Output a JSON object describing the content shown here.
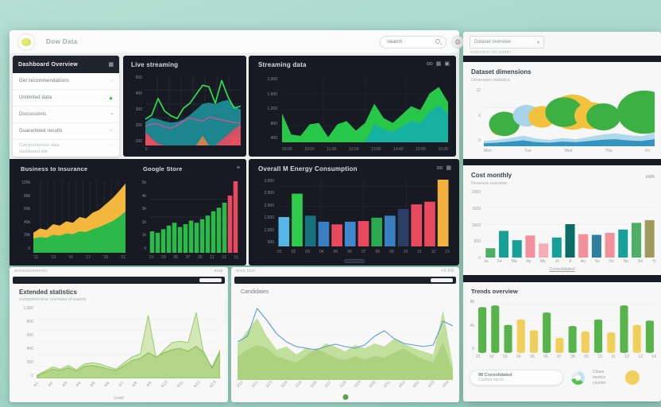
{
  "colors": {
    "background_teal": "#a3d6c7",
    "panel_dark": "#171a22",
    "accent_green": "#2ecc4b",
    "accent_teal": "#18a3a0",
    "accent_yellow": "#f2b73c",
    "accent_red": "#e8495f",
    "accent_blue": "#55b7e6",
    "light_green_area": "#bede96",
    "bar_green": "#56b44a",
    "bar_yellow": "#f2cf5b",
    "pink": "#f2919b",
    "olive": "#a09a5f"
  },
  "topbar": {
    "logo_text": "Dow Data",
    "search_placeholder": "Search",
    "gear_icon": "⚙"
  },
  "sidebar": {
    "header": {
      "label": "Dashboard Overview",
      "icon": "▦"
    },
    "items": [
      {
        "label": "Get recommendations",
        "icon": "▫"
      },
      {
        "label": "Unlimited data",
        "icon": "●"
      },
      {
        "label": "Discussions",
        "icon": "▪"
      },
      {
        "label": "Guaranteed results",
        "icon": "○"
      }
    ],
    "footer_lines": [
      "Comprehensive data",
      "dashboard site"
    ],
    "footer_more": "…"
  },
  "panel_live": {
    "title": "Live streaming",
    "corner_zero": "0",
    "y_ticks": [
      "500",
      "400",
      "300",
      "200",
      "100"
    ],
    "chart_data": {
      "type": "area",
      "grid": {
        "y": [
          20,
          40,
          60,
          80
        ],
        "x": [
          12.5,
          25,
          37.5,
          50,
          62.5,
          75,
          87.5
        ],
        "color": "#262a33"
      },
      "series": [
        {
          "kind": "area",
          "values": [
            34,
            40,
            38,
            35,
            33,
            34,
            38,
            44,
            52,
            60,
            62,
            60,
            64,
            66,
            57,
            52
          ],
          "color": "#1d8e97",
          "opacity": 0.92
        },
        {
          "kind": "area",
          "values": [
            16,
            8,
            0,
            0,
            0,
            0,
            0,
            0,
            0,
            14,
            0,
            0,
            0,
            0,
            16,
            10
          ],
          "color": "#f07f3c",
          "opacity": 0.85
        },
        {
          "kind": "line",
          "values": [
            28,
            31,
            31,
            27,
            25,
            29,
            35,
            40,
            37,
            35,
            41,
            39,
            37,
            35,
            33,
            32
          ],
          "color": "#d44f9e",
          "width": 1.3
        },
        {
          "kind": "area",
          "values": [
            20,
            10,
            3,
            0,
            0,
            0,
            0,
            0,
            0,
            0,
            0,
            0,
            8,
            16,
            24,
            30
          ],
          "color": "#e8495f",
          "opacity": 0.9
        },
        {
          "kind": "line",
          "values": [
            38,
            44,
            68,
            50,
            43,
            39,
            54,
            61,
            74,
            87,
            85,
            61,
            94,
            70,
            54,
            57
          ],
          "color": "#2ee050",
          "width": 1.7
        }
      ]
    }
  },
  "panel_stream": {
    "title": "Streaming data",
    "header_icons": [
      "oo",
      "▦",
      "▣"
    ],
    "y_ticks": [
      "2,000",
      "1,600",
      "1,200",
      "800",
      "400"
    ],
    "x_ticks": [
      "09:00",
      "10:00",
      "11:00",
      "12:00",
      "13:00",
      "14:00",
      "15:00",
      "16:00"
    ],
    "chart_data": {
      "type": "area",
      "grid": {
        "y": [
          25,
          50,
          75
        ],
        "x": [
          25,
          50,
          75
        ],
        "color": "#22252d"
      },
      "series": [
        {
          "kind": "area",
          "values": [
            45,
            12,
            10,
            28,
            30,
            8,
            28,
            33,
            18,
            30,
            60,
            38,
            30,
            43,
            56,
            50,
            76,
            86,
            62
          ],
          "color": "#27c84a",
          "opacity": 1
        },
        {
          "kind": "area",
          "values": [
            0,
            0,
            0,
            0,
            0,
            0,
            0,
            0,
            0,
            0,
            28,
            20,
            16,
            25,
            33,
            30,
            47,
            58,
            44
          ],
          "color": "#16b0a6",
          "opacity": 0.95
        }
      ]
    }
  },
  "panel_biz": {
    "title_a": "Business to Insurance",
    "title_b": "Google Store",
    "header_icon": "≡",
    "a_y_ticks": [
      "100k",
      "80k",
      "60k",
      "40k",
      "20k",
      "0"
    ],
    "a_x_ticks": [
      "'11",
      "'13",
      "'15",
      "'17",
      "'19",
      "'21"
    ],
    "b_y_ticks": [
      "5k",
      "4k",
      "3k",
      "2k",
      "1k",
      "0"
    ],
    "b_x_ticks": [
      "01",
      "03",
      "05",
      "07",
      "09",
      "11",
      "13",
      "15"
    ],
    "chart_a": {
      "type": "area",
      "grid": {
        "x": [
          7.7,
          15.4,
          23,
          30.8,
          38.5,
          46.2,
          53.8,
          61.5,
          69.2,
          76.9,
          84.6,
          92.3
        ],
        "color": "#262a33"
      },
      "series": [
        {
          "kind": "area",
          "values": [
            28,
            34,
            32,
            40,
            38,
            44,
            42,
            50,
            48,
            56,
            60,
            68,
            76,
            86,
            97
          ],
          "color": "#f2b73c",
          "opacity": 1
        },
        {
          "kind": "area",
          "values": [
            20,
            22,
            21,
            25,
            24,
            27,
            26,
            30,
            29,
            33,
            36,
            40,
            44,
            50,
            58
          ],
          "color": "#2db84a",
          "opacity": 1
        }
      ]
    },
    "chart_b": {
      "type": "bar",
      "grid": {
        "y": [
          25,
          50,
          75
        ],
        "color": "#262a33"
      },
      "bars": {
        "values": [
          30,
          28,
          33,
          38,
          42,
          36,
          40,
          45,
          42,
          47,
          52,
          58,
          63,
          70,
          80,
          100
        ],
        "width": 0.8,
        "colors": [
          "#2db84a",
          "#2db84a",
          "#2db84a",
          "#2db84a",
          "#2db84a",
          "#2db84a",
          "#2db84a",
          "#2db84a",
          "#2db84a",
          "#2db84a",
          "#2db84a",
          "#2db84a",
          "#2db84a",
          "#2db84a",
          "#e8495f",
          "#e8495f"
        ]
      }
    }
  },
  "panel_energy": {
    "title": "Overall M Energy Consumption",
    "header_icons": [
      "oo",
      "▦"
    ],
    "y_ticks": [
      "3,000",
      "2,500",
      "2,000",
      "1,500",
      "1,000",
      "500"
    ],
    "x_ticks": [
      "01",
      "02",
      "03",
      "04",
      "05",
      "06",
      "07",
      "08",
      "09",
      "10",
      "11",
      "12",
      "13"
    ],
    "chart_data": {
      "type": "bar",
      "grid": {
        "y": [
          30,
          60,
          90
        ],
        "x": [
          25,
          50,
          75
        ],
        "color": "#22262f"
      },
      "bars": {
        "values": [
          44,
          79,
          46,
          37,
          33,
          37,
          38,
          43,
          46,
          56,
          63,
          67,
          100
        ],
        "width": 0.82,
        "colors": [
          "#56b7e6",
          "#2ecc4b",
          "#17727f",
          "#3a7fc1",
          "#e8495f",
          "#4089cf",
          "#e8495f",
          "#2aa94f",
          "#3a7fc1",
          "#2b3e66",
          "#e8495f",
          "#e8495f",
          "#f2b03c"
        ]
      }
    }
  },
  "right_toolbar": {
    "select_label": "Dataset overview",
    "chevron": "▾",
    "caption": "statistics list panel"
  },
  "dimensions": {
    "title": "Dataset dimensions",
    "subtitle": "Dimension statistics",
    "y_ticks": [
      "12",
      "6",
      "0"
    ],
    "x_ticks": [
      "Mon",
      "Tue",
      "Wed",
      "Thu",
      "Fri"
    ],
    "chart_data": {
      "type": "area",
      "grid": {
        "y": [
          33,
          66
        ],
        "color": "#eceeec"
      },
      "blob_ry": 2.3,
      "series": [
        {
          "kind": "area",
          "values": [
            9,
            11,
            14,
            18,
            13,
            11,
            14,
            12,
            16,
            20,
            22,
            19,
            17,
            23
          ],
          "color": "#a8d4ea",
          "opacity": 0.9
        },
        {
          "kind": "area",
          "values": [
            5,
            6,
            8,
            10,
            7,
            6,
            8,
            7,
            9,
            11,
            12,
            10,
            9,
            12
          ],
          "color": "#2e8fc0",
          "opacity": 0.95
        }
      ],
      "blobs": [
        {
          "x": 9,
          "y": 30,
          "r": 5,
          "color": "#f2c23c"
        },
        {
          "x": 12,
          "y": 38,
          "r": 9,
          "color": "#3cb043"
        },
        {
          "x": 25,
          "y": 52,
          "r": 8,
          "color": "#a8d4ea"
        },
        {
          "x": 34,
          "y": 50,
          "r": 8,
          "color": "#f2c23c"
        },
        {
          "x": 52,
          "y": 58,
          "r": 13,
          "color": "#f2c23c"
        },
        {
          "x": 47,
          "y": 58,
          "r": 11,
          "color": "#3cb043"
        },
        {
          "x": 63,
          "y": 52,
          "r": 10,
          "color": "#f2c23c"
        },
        {
          "x": 70,
          "y": 50,
          "r": 10,
          "color": "#3cb043"
        },
        {
          "x": 98,
          "y": 48,
          "r": 8,
          "color": "#f2c23c"
        },
        {
          "x": 94,
          "y": 58,
          "r": 16,
          "color": "#3cb043"
        }
      ]
    }
  },
  "cost": {
    "title": "Cost monthly",
    "subtitle": "Revenue overview",
    "legend_label": "kWh",
    "footer_link": "Consolidated",
    "y_ticks": [
      "2000",
      "1500",
      "1000",
      "500",
      "0"
    ],
    "x_ticks": [
      "Ja",
      "Fe",
      "Ma",
      "Ap",
      "My",
      "Jn",
      "Jl",
      "Au",
      "Se",
      "Oc",
      "No",
      "De",
      "Yr"
    ],
    "chart_data": {
      "type": "bar",
      "grid": {
        "y": [
          25,
          50,
          75
        ],
        "color": "#eceeec"
      },
      "bars": {
        "values": [
          14,
          40,
          26,
          33,
          21,
          30,
          50,
          35,
          34,
          37,
          42,
          52,
          56
        ],
        "width": 0.72,
        "colors": [
          "#4daf63",
          "#17a098",
          "#17a098",
          "#f2919b",
          "#f6aeb6",
          "#17a098",
          "#0b6b66",
          "#f2919b",
          "#2d7fa0",
          "#f2919b",
          "#17a098",
          "#4daf63",
          "#a09a5f"
        ]
      }
    }
  },
  "trends": {
    "title": "Trends overview",
    "y_ticks": [
      "8k",
      "4k",
      "0"
    ],
    "x_ticks": [
      "01",
      "02",
      "03",
      "04",
      "05",
      "06",
      "07",
      "08",
      "09",
      "10",
      "11",
      "12",
      "13",
      "14"
    ],
    "chart_data": {
      "type": "bar",
      "grid": {
        "y": [
          30,
          60,
          90
        ],
        "color": "#eef0ee"
      },
      "bars": {
        "values": [
          85,
          88,
          52,
          62,
          42,
          75,
          28,
          50,
          40,
          62,
          38,
          88,
          52,
          60
        ],
        "width": 0.62,
        "rx": 2.2,
        "colors": [
          "#56b44a",
          "#56b44a",
          "#56b44a",
          "#f2cf5b",
          "#f2cf5b",
          "#56b44a",
          "#f2cf5b",
          "#56b44a",
          "#f2cf5b",
          "#56b44a",
          "#f2cf5b",
          "#56b44a",
          "#f2cf5b",
          "#56b44a"
        ]
      }
    },
    "footer": {
      "pill_line1": "98 Consolidated",
      "pill_line2": "Custom report",
      "donut_slices": [
        {
          "color": "#bfe3f2",
          "deg": 130
        },
        {
          "color": "#57c24e",
          "deg": 130
        },
        {
          "color": "#e8eef0",
          "deg": 100
        }
      ],
      "text_lines": [
        "Chase",
        "metrics",
        "counter"
      ],
      "circle_color": "#f2cf5b"
    }
  },
  "bottom_left": {
    "strip_left": "announcements",
    "strip_right": "map",
    "title": "Extended statistics",
    "subtitle": "comprehensive overview of events",
    "xlabel": "Load",
    "y_ticks": [
      "1,000",
      "800",
      "600",
      "400",
      "200",
      "0"
    ],
    "x_ticks": [
      "4/1",
      "4/2",
      "4/3",
      "4/4",
      "4/5",
      "4/6",
      "4/7",
      "4/8",
      "4/9",
      "4/10",
      "4/11",
      "4/12",
      "4/13"
    ],
    "chart_data": {
      "type": "area",
      "grid": {
        "y": [
          17,
          33,
          50,
          67,
          83
        ],
        "color": "#eef1ee"
      },
      "series": [
        {
          "kind": "area",
          "values": [
            4,
            10,
            16,
            13,
            18,
            12,
            20,
            22,
            20,
            16,
            13,
            22,
            30,
            34,
            88,
            28,
            40,
            50,
            52,
            50,
            92,
            32,
            16,
            40
          ],
          "color": "#cfe6ae",
          "opacity": 0.92,
          "stroke": "#9cc873"
        },
        {
          "kind": "area",
          "values": [
            3,
            8,
            13,
            11,
            15,
            10,
            17,
            18,
            16,
            13,
            11,
            18,
            25,
            28,
            36,
            30,
            36,
            40,
            42,
            38,
            45,
            36,
            14,
            36
          ],
          "color": "#aed47f",
          "opacity": 0.9,
          "stroke": "#8abb5e"
        }
      ]
    }
  },
  "bottom_mid": {
    "strip_left": "area tour",
    "strip_right": "+0.5%",
    "title": "Candidates",
    "x_ticks": [
      "3/21",
      "3/22",
      "3/23",
      "3/24",
      "3/25",
      "3/26",
      "3/27",
      "3/28",
      "3/29",
      "3/30",
      "3/31",
      "4/01",
      "4/02",
      "4/03",
      "4/04"
    ],
    "chart_data": {
      "type": "area",
      "grid": {
        "y": [
          20,
          40,
          60,
          80
        ],
        "color": "#eef1ee"
      },
      "series": [
        {
          "kind": "area",
          "values": [
            45,
            62,
            78,
            55,
            38,
            42,
            32,
            40,
            36,
            46,
            42,
            36,
            44,
            40,
            46,
            42,
            52,
            46,
            40,
            36,
            32,
            88,
            18
          ],
          "color": "#bede96",
          "opacity": 0.95
        },
        {
          "kind": "area",
          "values": [
            30,
            38,
            44,
            40,
            30,
            26,
            22,
            30,
            40,
            34,
            28,
            25,
            30,
            26,
            30,
            28,
            34,
            40,
            32,
            26,
            22,
            48,
            12
          ],
          "color": "#a9cf7a",
          "opacity": 0.85
        },
        {
          "kind": "line",
          "values": [
            48,
            55,
            90,
            75,
            58,
            48,
            42,
            40,
            38,
            42,
            45,
            42,
            40,
            44,
            55,
            62,
            52,
            46,
            44,
            42,
            44,
            74,
            68
          ],
          "color": "#5b9bd5",
          "width": 1.1
        }
      ]
    }
  }
}
